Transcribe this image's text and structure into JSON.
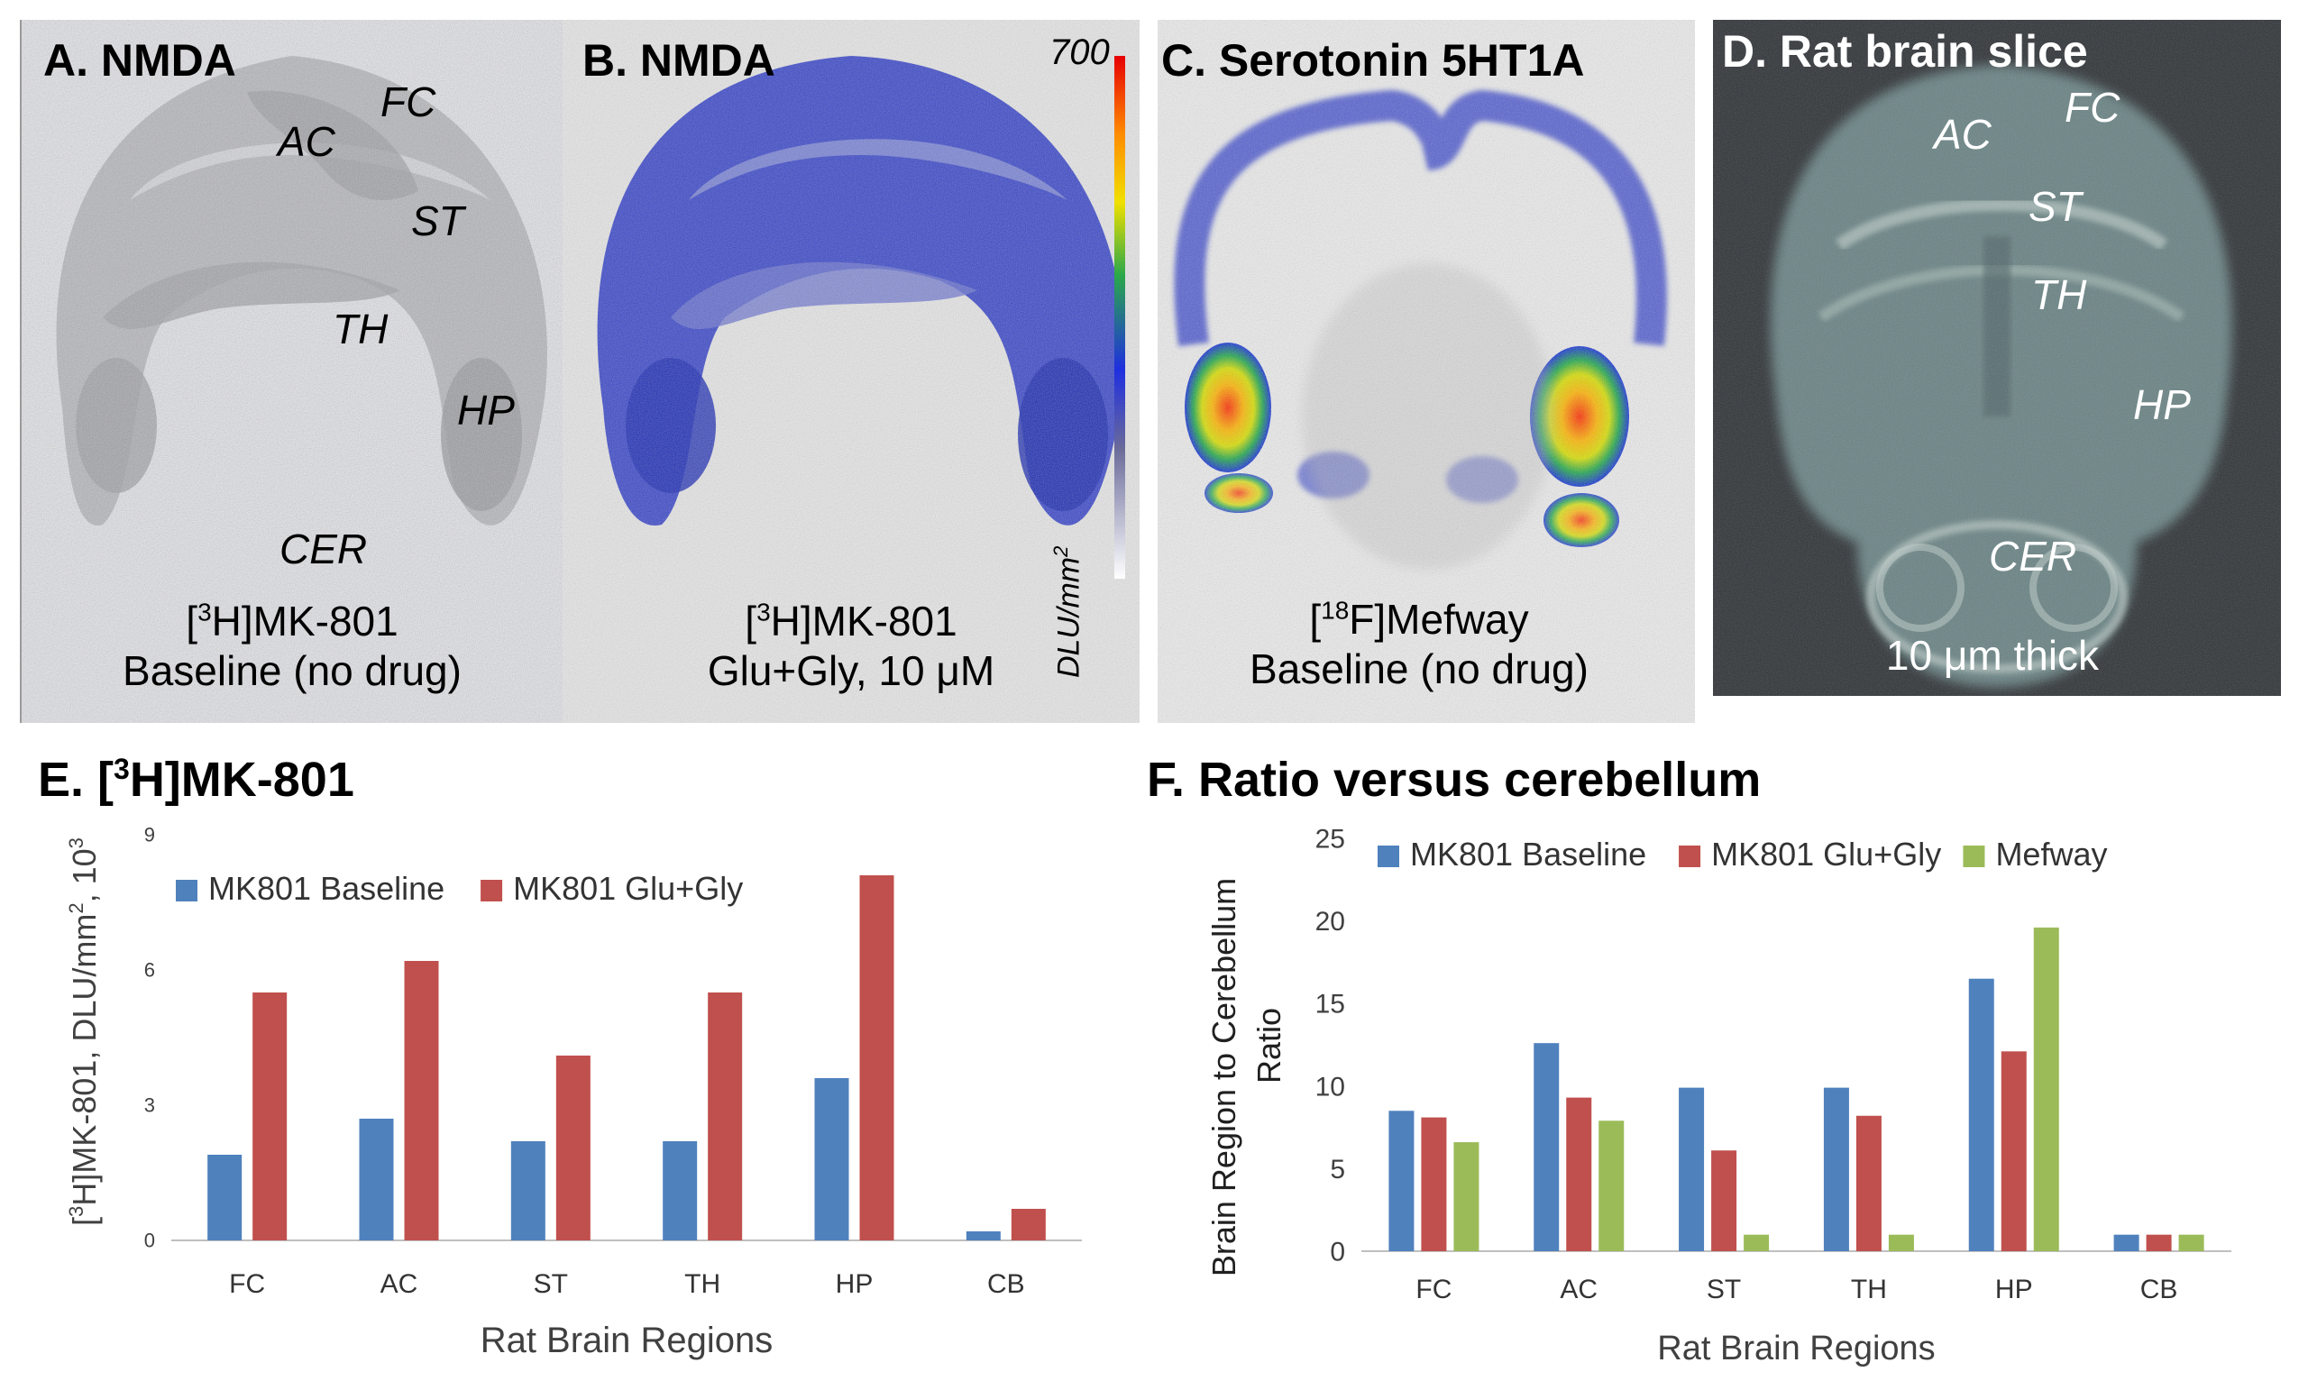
{
  "panels": {
    "a": {
      "title": "A. NMDA",
      "regions": {
        "ac": "AC",
        "fc": "FC",
        "st": "ST",
        "th": "TH",
        "hp": "HP",
        "cer": "CER"
      },
      "caption_tracer_sup": "3",
      "caption_tracer_pre": "[",
      "caption_tracer_post": "H]MK-801",
      "caption_condition": "Baseline (no drug)"
    },
    "b": {
      "title": "B. NMDA",
      "colorbar_max": "700",
      "colorbar_unit": "DLU/mm",
      "colorbar_unit_sup": "2",
      "caption_tracer_sup": "3",
      "caption_tracer_pre": "[",
      "caption_tracer_post": "H]MK-801",
      "caption_condition": "Glu+Gly, 10 μM"
    },
    "c": {
      "title": "C. Serotonin 5HT1A",
      "caption_tracer_sup": "18",
      "caption_tracer_pre": "[",
      "caption_tracer_post": "F]Mefway",
      "caption_condition": "Baseline (no drug)"
    },
    "d": {
      "title": "D. Rat brain slice",
      "regions": {
        "ac": "AC",
        "fc": "FC",
        "st": "ST",
        "th": "TH",
        "hp": "HP",
        "cer": "CER"
      },
      "caption": "10 μm thick"
    }
  },
  "colors": {
    "baseline": "#4f81bd",
    "glugly": "#c0504d",
    "mefway": "#9bbb59",
    "axis": "#bfbfbf"
  },
  "chart_data": [
    {
      "id": "E",
      "type": "bar",
      "title": "E. [3H]MK-801",
      "title_pre": "E. [",
      "title_sup": "3",
      "title_post": "H]MK-801",
      "xlabel": "Rat Brain Regions",
      "ylabel": "[3H]MK-801, DLU/mm2, 103",
      "ylabel_parts": [
        "[",
        "3",
        "H]MK-801, DLU/mm",
        "2",
        ", 10",
        "3"
      ],
      "categories": [
        "FC",
        "AC",
        "ST",
        "TH",
        "HP",
        "CB"
      ],
      "ylim": [
        0,
        9
      ],
      "yticks": [
        0,
        3,
        6,
        9
      ],
      "legend_position": "top-left",
      "series": [
        {
          "name": "MK801 Baseline",
          "color": "#4f81bd",
          "values": [
            1.9,
            2.7,
            2.2,
            2.2,
            3.6,
            0.2
          ]
        },
        {
          "name": "MK801 Glu+Gly",
          "color": "#c0504d",
          "values": [
            5.5,
            6.2,
            4.1,
            5.5,
            8.1,
            0.7
          ]
        }
      ]
    },
    {
      "id": "F",
      "type": "bar",
      "title": "F. Ratio versus cerebellum",
      "xlabel": "Rat Brain Regions",
      "ylabel_line1": "Brain Region to Cerebellum",
      "ylabel_line2": "Ratio",
      "categories": [
        "FC",
        "AC",
        "ST",
        "TH",
        "HP",
        "CB"
      ],
      "ylim": [
        0,
        25
      ],
      "yticks": [
        0,
        5,
        10,
        15,
        20,
        25
      ],
      "legend_position": "top",
      "series": [
        {
          "name": "MK801 Baseline",
          "color": "#4f81bd",
          "values": [
            8.5,
            12.6,
            9.9,
            9.9,
            16.5,
            1.0
          ]
        },
        {
          "name": "MK801 Glu+Gly",
          "color": "#c0504d",
          "values": [
            8.1,
            9.3,
            6.1,
            8.2,
            12.1,
            1.0
          ]
        },
        {
          "name": "Mefway",
          "color": "#9bbb59",
          "values": [
            6.6,
            7.9,
            1.0,
            1.0,
            19.6,
            1.0
          ]
        }
      ]
    }
  ]
}
